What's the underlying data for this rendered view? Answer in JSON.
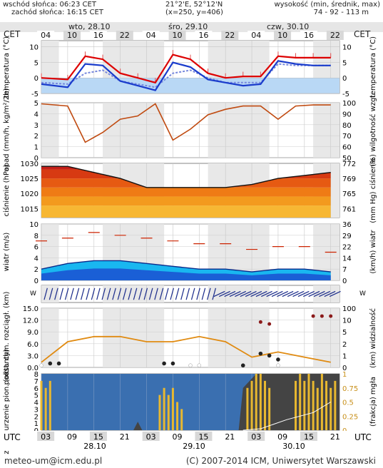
{
  "header": {
    "sunrise": "wschód słońca: 06:23 CET",
    "sunset": "zachód słońca: 16:15 CET",
    "coords": "21°2'E, 52°12'N",
    "grid": "(x=250, y=406)",
    "altitude_label": "wysokość (min, średnik, max)",
    "altitude_values": "74 - 92 - 113 m"
  },
  "timezone_top": "CET",
  "timezone_bottom": "UTC",
  "days": [
    "wto, 28.10",
    "śro, 29.10",
    "czw, 30.10"
  ],
  "days_bottom": [
    "28.10",
    "29.10",
    "30.10"
  ],
  "cet_hours": [
    "04",
    "10",
    "16",
    "22",
    "04",
    "10",
    "16",
    "22",
    "04",
    "10",
    "16",
    "22"
  ],
  "utc_hours": [
    "03",
    "09",
    "15",
    "21",
    "03",
    "09",
    "15",
    "21",
    "03",
    "09",
    "15",
    "21"
  ],
  "footer": {
    "email": "meteo-um@icm.edu.pl",
    "copyright": "(C) 2007-2014 ICM, Uniwersytet Warszawski"
  },
  "colors": {
    "temp_max": "#dd0000",
    "temp_mean": "#1a3ccc",
    "dewpoint": "#7788dd",
    "humidity": "#c04a10",
    "pressure_line": "#111111",
    "wind_mean_fill": "#1a5fd6",
    "wind_gust": "#cc2200",
    "visibility": "#e08a10",
    "low_cloud_bar": "#e8b830"
  },
  "chart_data": [
    {
      "type": "line",
      "panel": "temperature",
      "ylabel_left": "temperatura (°C)",
      "ylabel_right": "temperatura (°C)",
      "ylim": [
        -5,
        12
      ],
      "yticks_left": [
        "10",
        "5",
        "0",
        "-5"
      ],
      "yticks_right": [
        "10",
        "5",
        "0",
        "-5"
      ],
      "x_hours": [
        0,
        6,
        10,
        14,
        18,
        22,
        26,
        30,
        34,
        38,
        42,
        46,
        50,
        54,
        58,
        62,
        66
      ],
      "series": [
        {
          "role": "max",
          "values": [
            0,
            -0.5,
            7,
            6,
            1.5,
            0,
            -1.5,
            7.5,
            6,
            1.5,
            0,
            0.5,
            0.5,
            7,
            6.5,
            6.5,
            6.5
          ]
        },
        {
          "role": "mean",
          "values": [
            -2,
            -3,
            4.5,
            4,
            -1,
            -2.5,
            -4,
            5,
            3.5,
            -0.5,
            -1.5,
            -2.5,
            -2,
            5.5,
            4.5,
            4,
            4
          ]
        },
        {
          "role": "dewpoint",
          "values": [
            -1.5,
            -2,
            1.5,
            2.5,
            -1,
            -2,
            -3,
            1.5,
            2.5,
            0,
            -1.5,
            -1.5,
            -1.5,
            4.5,
            4,
            4,
            4
          ]
        }
      ]
    },
    {
      "type": "line",
      "panel": "precipitation_humidity",
      "ylabel_left": "opad (mm/h, kg/m²/2h)",
      "ylabel_right": "(%) wilgotność wzgl.",
      "yticks_left": [
        "5",
        "4",
        "3",
        "2",
        "1",
        "0"
      ],
      "yticks_right": [
        "100",
        "90",
        "80",
        "70",
        "60",
        "50"
      ],
      "ylim_left": [
        0,
        5
      ],
      "ylim_right": [
        50,
        100
      ],
      "x_hours": [
        0,
        6,
        10,
        14,
        18,
        22,
        26,
        30,
        34,
        38,
        42,
        46,
        50,
        54,
        58,
        62,
        66
      ],
      "series": [
        {
          "role": "humidity",
          "values": [
            99,
            97,
            64,
            73,
            85,
            88,
            99,
            66,
            76,
            89,
            94,
            97,
            97,
            85,
            97,
            98,
            98
          ]
        }
      ]
    },
    {
      "type": "area",
      "panel": "pressure",
      "ylabel_left": "ciśnienie (hPa)",
      "ylabel_right": "(mm Hg) ciśnienie",
      "yticks_left": [
        "1030",
        "1025",
        "1020",
        "1015"
      ],
      "yticks_right": [
        "772",
        "769",
        "765",
        "761"
      ],
      "ylim": [
        1012,
        1030
      ],
      "x_hours": [
        0,
        6,
        12,
        18,
        24,
        30,
        36,
        42,
        48,
        54,
        60,
        66
      ],
      "series": [
        {
          "role": "pressure_hPa",
          "values": [
            1029,
            1029,
            1027,
            1025,
            1022,
            1022,
            1022,
            1022,
            1023,
            1025,
            1026,
            1027
          ]
        }
      ]
    },
    {
      "type": "area",
      "panel": "wind",
      "ylabel_left": "wiatr (m/s)",
      "ylabel_right": "(km/h) wiatr",
      "yticks_left": [
        "10",
        "8",
        "6",
        "4",
        "2",
        "0"
      ],
      "yticks_right": [
        "36",
        "29",
        "22",
        "14",
        "7",
        "0"
      ],
      "ylim": [
        0,
        10
      ],
      "x_hours": [
        0,
        6,
        12,
        18,
        24,
        30,
        36,
        42,
        48,
        54,
        60,
        66
      ],
      "series": [
        {
          "role": "wind_mean",
          "values": [
            2,
            3,
            3.5,
            3.5,
            3,
            2.5,
            2,
            2,
            1.5,
            2,
            2,
            1.5
          ]
        },
        {
          "role": "wind_gust",
          "values": [
            7,
            7.5,
            8.5,
            8,
            7.5,
            7,
            6.5,
            6.5,
            5.5,
            6,
            6,
            5
          ]
        }
      ]
    },
    {
      "type": "scatter",
      "panel": "visibility_cloud_base",
      "ylabel_left": "podst. chm. rozciągł. (km)",
      "ylabel_right": "(km) widzialność",
      "yticks_left": [
        "15.0",
        "12.0",
        "9.0",
        "6.0",
        "3.0",
        "0.0"
      ],
      "yticks_right": [
        "100",
        "10",
        "5",
        "2",
        "1",
        "0"
      ],
      "x_hours": [
        0,
        6,
        12,
        18,
        24,
        30,
        36,
        42,
        48,
        54,
        60,
        66
      ],
      "series": [
        {
          "role": "visibility_km",
          "values": [
            1,
            5,
            6,
            6,
            5,
            5,
            6,
            5,
            2,
            3,
            2,
            1
          ]
        }
      ]
    },
    {
      "type": "bar",
      "panel": "cloud_cover",
      "ylabel_left": "zachmurzenie pion. (oktanty)",
      "ylabel_right": "(frakcja) mgła",
      "yticks_left": [
        "8",
        "7",
        "6",
        "5",
        "4",
        "3",
        "2",
        "1",
        "0"
      ],
      "yticks_right": [
        "1",
        "0.75",
        "0.5",
        "0.25",
        "0"
      ],
      "x_hours": [
        0,
        6,
        12,
        18,
        24,
        30,
        36,
        42,
        48,
        54,
        60,
        66
      ],
      "series": [
        {
          "role": "low_cloud_okta",
          "values": [
            7,
            3,
            0,
            0,
            0,
            6,
            0,
            0,
            0,
            8,
            6,
            8
          ]
        }
      ]
    }
  ]
}
